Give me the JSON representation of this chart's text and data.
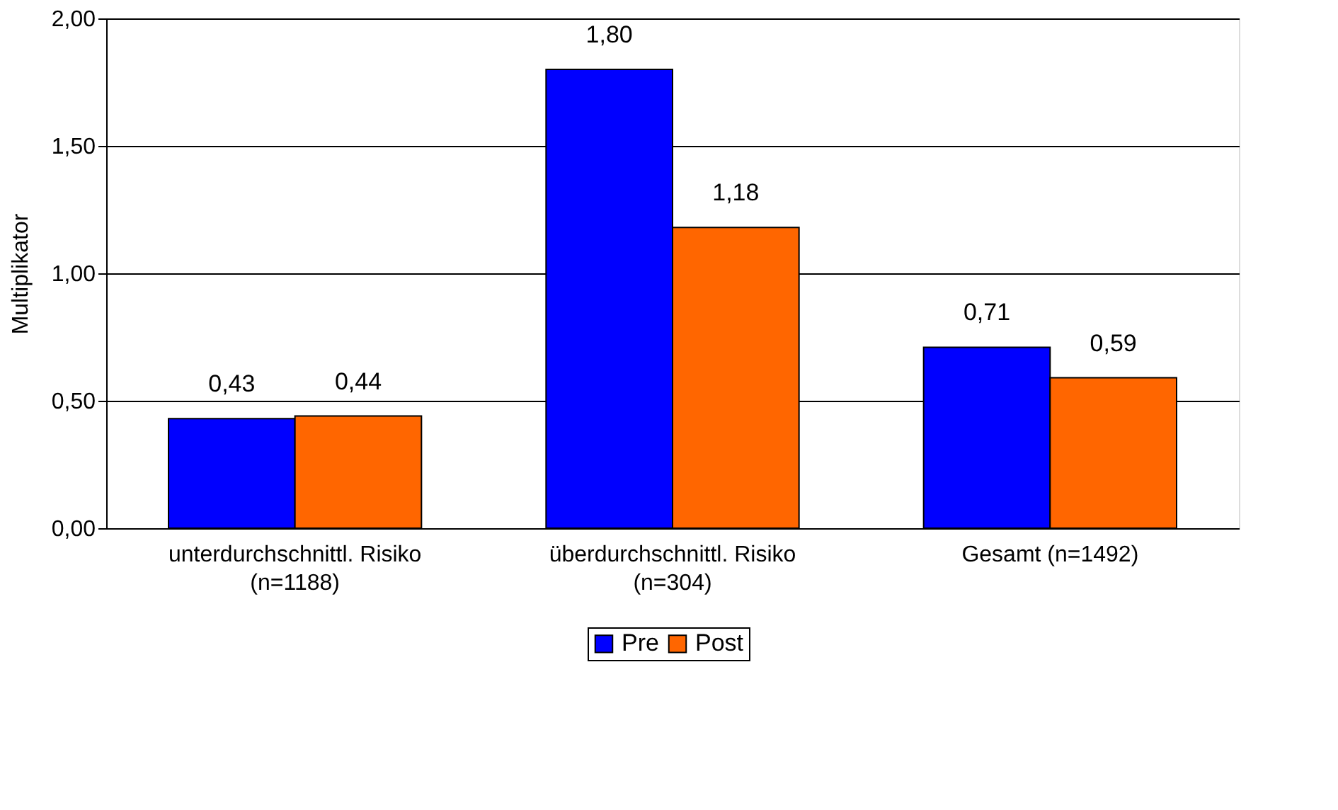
{
  "chart_data": {
    "type": "bar",
    "ylabel": "Multiplikator",
    "categories": [
      "unterdurchschnittl. Risiko\n(n=1188)",
      "überdurchschnittl. Risiko\n(n=304)",
      "Gesamt (n=1492)"
    ],
    "series": [
      {
        "name": "Pre",
        "color": "#0000ff",
        "values": [
          0.43,
          1.8,
          0.71
        ],
        "value_labels": [
          "0,43",
          "1,80",
          "0,71"
        ]
      },
      {
        "name": "Post",
        "color": "#ff6600",
        "values": [
          0.44,
          1.18,
          0.59
        ],
        "value_labels": [
          "0,44",
          "1,18",
          "0,59"
        ]
      }
    ],
    "ylim": [
      0,
      2
    ],
    "yticks": [
      {
        "value": 0,
        "label": "0,00"
      },
      {
        "value": 0.5,
        "label": "0,50"
      },
      {
        "value": 1,
        "label": "1,00"
      },
      {
        "value": 1.5,
        "label": "1,50"
      },
      {
        "value": 2,
        "label": "2,00"
      }
    ],
    "grid": "y",
    "legend": "bottom"
  }
}
